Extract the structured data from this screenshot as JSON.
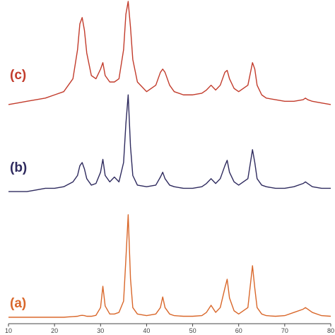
{
  "chart_data": {
    "type": "line",
    "x": [
      10,
      12,
      14,
      16,
      18,
      20,
      22,
      24,
      25,
      25.5,
      26,
      26.5,
      27,
      28,
      29,
      30,
      30.5,
      31,
      32,
      33,
      34,
      35,
      35.5,
      36,
      36.5,
      37,
      38,
      40,
      42,
      43,
      43.5,
      44,
      45,
      46,
      48,
      50,
      52,
      53,
      54,
      55,
      56,
      57,
      57.5,
      58,
      59,
      60,
      62,
      63,
      63.5,
      64,
      65,
      66,
      68,
      70,
      72,
      74,
      74.5,
      75,
      76,
      78,
      80
    ],
    "series": [
      {
        "name": "(a)",
        "color": "#d9672a",
        "values": [
          2,
          2,
          2,
          2,
          2,
          2,
          2,
          2.2,
          2.3,
          2.5,
          2.6,
          2.5,
          2.3,
          2.3,
          2.6,
          5,
          11.6,
          5.5,
          3,
          3,
          3.5,
          7,
          20,
          33.8,
          14,
          5,
          3,
          2.5,
          3,
          5,
          8.3,
          5,
          3,
          2.5,
          2.3,
          2.3,
          2.5,
          3.5,
          5.7,
          3.5,
          5,
          11,
          13.8,
          8,
          4,
          3,
          5,
          18,
          11,
          5,
          3,
          2.5,
          2.3,
          2.5,
          3.5,
          4.5,
          5,
          4.5,
          3.5,
          2.5,
          2.3
        ]
      },
      {
        "name": "(b)",
        "color": "#2e2a5e",
        "values": [
          41,
          41,
          41,
          41.5,
          42,
          42,
          42.5,
          44,
          46,
          49,
          50,
          48,
          45,
          43,
          43.5,
          47,
          51,
          46,
          44,
          45.5,
          44,
          50,
          62,
          71,
          55,
          46,
          43,
          42.5,
          43,
          45.5,
          47,
          45,
          43,
          42.5,
          42,
          42,
          42.5,
          43.5,
          45,
          43.5,
          45,
          49,
          50.7,
          47,
          44,
          43,
          45,
          54,
          50,
          45,
          43,
          42.5,
          42,
          42,
          42.5,
          43.5,
          44,
          43.5,
          42.5,
          42,
          42
        ]
      },
      {
        "name": "(c)",
        "color": "#c23b2b",
        "values": [
          68,
          68.5,
          69,
          69.5,
          70,
          71,
          72,
          76,
          85,
          93,
          95,
          91,
          84,
          77,
          76,
          79,
          81,
          77,
          75,
          75,
          76,
          85,
          96,
          100,
          92,
          82,
          75,
          72,
          74,
          78,
          79,
          78,
          74,
          72,
          71,
          71,
          71.5,
          72.5,
          74,
          72.5,
          74,
          78,
          78.6,
          76,
          73,
          72,
          74,
          81,
          79,
          74,
          71,
          70,
          69.5,
          69,
          69,
          69.5,
          70,
          69.5,
          69,
          68.5,
          68
        ]
      }
    ],
    "xlim": [
      10,
      80
    ],
    "xticks": [
      10,
      20,
      30,
      40,
      50,
      60,
      70,
      80
    ],
    "ylim": [
      0,
      100
    ]
  }
}
